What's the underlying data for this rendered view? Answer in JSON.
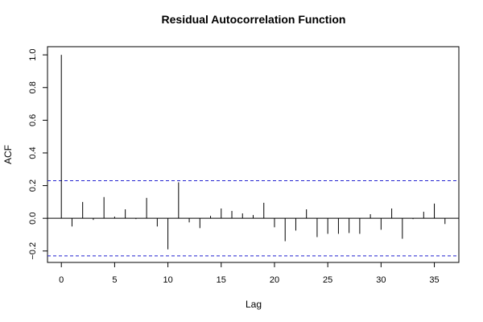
{
  "chart_data": {
    "type": "bar",
    "title": "Residual Autocorrelation Function",
    "xlabel": "Lag",
    "ylabel": "ACF",
    "xlim": [
      -1.3,
      37.3
    ],
    "ylim": [
      -0.27,
      1.05
    ],
    "x_ticks": [
      0,
      5,
      10,
      15,
      20,
      25,
      30,
      35
    ],
    "y_ticks": [
      -0.2,
      0.0,
      0.2,
      0.4,
      0.6,
      0.8,
      1.0
    ],
    "y_tick_labels": [
      "−0.2",
      "0.0",
      "0.2",
      "0.4",
      "0.6",
      "0.8",
      "1.0"
    ],
    "confidence_bounds": [
      0.23,
      -0.23
    ],
    "zero_line": true,
    "lags": [
      0,
      1,
      2,
      3,
      4,
      5,
      6,
      7,
      8,
      9,
      10,
      11,
      12,
      13,
      14,
      15,
      16,
      17,
      18,
      19,
      20,
      21,
      22,
      23,
      24,
      25,
      26,
      27,
      28,
      29,
      30,
      31,
      32,
      33,
      34,
      35,
      36
    ],
    "values": [
      1.0,
      -0.05,
      0.1,
      -0.01,
      0.13,
      0.01,
      0.055,
      -0.005,
      0.125,
      -0.05,
      -0.19,
      0.22,
      -0.025,
      -0.06,
      0.015,
      0.06,
      0.045,
      0.03,
      0.02,
      0.095,
      -0.055,
      -0.14,
      -0.075,
      0.055,
      -0.115,
      -0.095,
      -0.095,
      -0.09,
      -0.095,
      0.025,
      -0.07,
      0.06,
      -0.125,
      -0.005,
      0.04,
      0.09,
      -0.035
    ],
    "colors": {
      "bars": "#000000",
      "bounds": "#2020d0",
      "frame": "#000000"
    }
  }
}
